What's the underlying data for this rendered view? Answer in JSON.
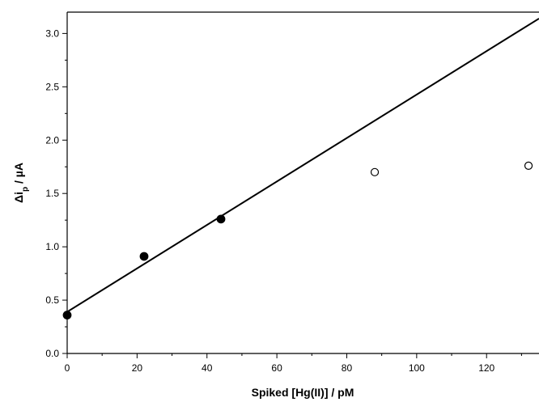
{
  "chart_data": {
    "type": "scatter",
    "xlabel": "Spiked [Hg(II)] / pM",
    "ylabel": {
      "prefix": "Δi",
      "subscript": "p",
      "suffix": " / µA"
    },
    "xlim": [
      0,
      135
    ],
    "ylim": [
      0,
      3.2
    ],
    "x_ticks": [
      0,
      20,
      40,
      60,
      80,
      100,
      120
    ],
    "x_tick_labels": [
      "0",
      "20",
      "40",
      "60",
      "80",
      "100",
      "120"
    ],
    "y_ticks": [
      0,
      0.5,
      1.0,
      1.5,
      2.0,
      2.5,
      3.0
    ],
    "y_tick_labels": [
      "0.0",
      "0.5",
      "1.0",
      "1.5",
      "2.0",
      "2.5",
      "3.0"
    ],
    "grid": false,
    "series": [
      {
        "marker": "filled-circle",
        "points": [
          {
            "x": 0,
            "y": 0.36
          },
          {
            "x": 22,
            "y": 0.91
          },
          {
            "x": 44,
            "y": 1.26
          }
        ]
      },
      {
        "marker": "open-circle",
        "points": [
          {
            "x": 88,
            "y": 1.7
          },
          {
            "x": 132,
            "y": 1.76
          }
        ]
      }
    ],
    "fit_line": {
      "start": {
        "x": 0,
        "y": 0.39
      },
      "end": {
        "x": 135,
        "y": 3.14
      }
    }
  }
}
